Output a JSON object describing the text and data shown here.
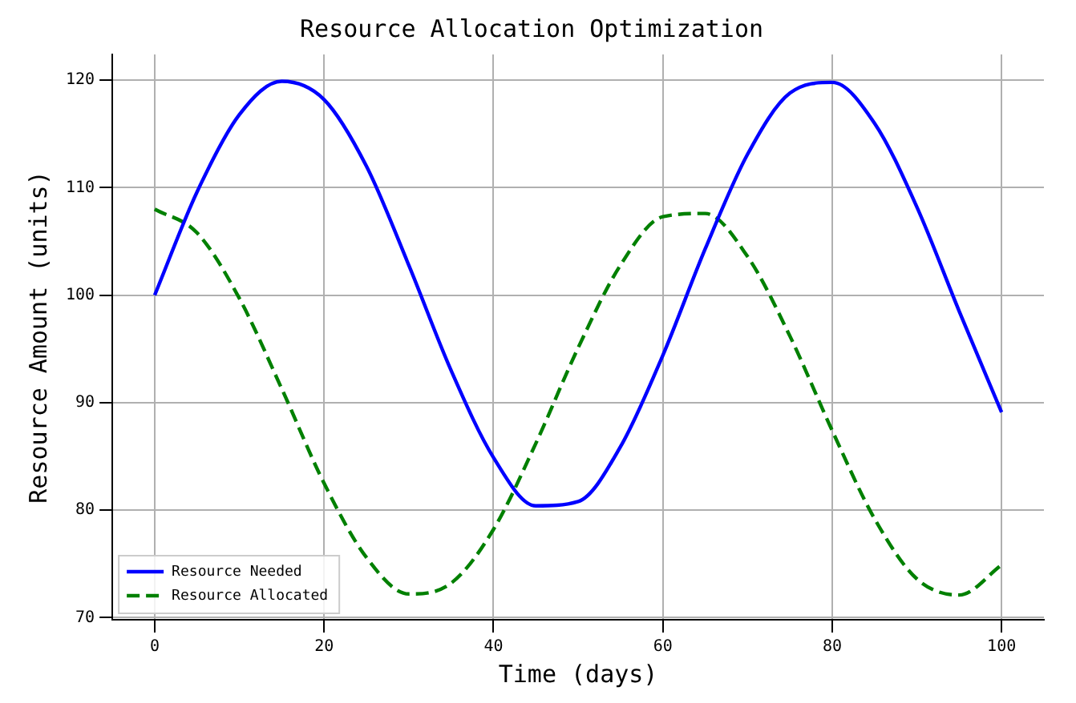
{
  "chart_data": {
    "type": "line",
    "title": "Resource Allocation Optimization",
    "xlabel": "Time (days)",
    "ylabel": "Resource Amount (units)",
    "x": [
      0,
      5,
      10,
      15,
      20,
      25,
      30,
      35,
      40,
      45,
      50,
      55,
      60,
      65,
      70,
      75,
      80,
      85,
      90,
      95,
      100
    ],
    "series": [
      {
        "name": "Resource Needed",
        "color": "#0000ff",
        "line_style": "solid",
        "values": [
          100,
          109.6,
          116.8,
          119.9,
          118.2,
          112.0,
          102.8,
          93.0,
          84.9,
          80.4,
          80.8,
          85.9,
          94.4,
          104.3,
          113.1,
          118.8,
          119.8,
          116.0,
          108.2,
          98.5,
          89.1
        ]
      },
      {
        "name": "Resource Allocated",
        "color": "#008000",
        "line_style": "dashed",
        "values": [
          108,
          105.8,
          99.7,
          91.3,
          82.5,
          75.6,
          72.2,
          73.2,
          78.2,
          86.2,
          95.1,
          102.8,
          107.3,
          107.6,
          103.6,
          96.2,
          87.4,
          79.2,
          73.6,
          72.1,
          74.9
        ]
      }
    ],
    "xlim": [
      -5,
      105
    ],
    "xticks": [
      0,
      20,
      40,
      60,
      80,
      100
    ],
    "ylim": [
      69.8,
      122.4
    ],
    "yticks": [
      70,
      80,
      90,
      100,
      110,
      120
    ],
    "grid": true,
    "legend": "bottom left",
    "marker": "none"
  }
}
